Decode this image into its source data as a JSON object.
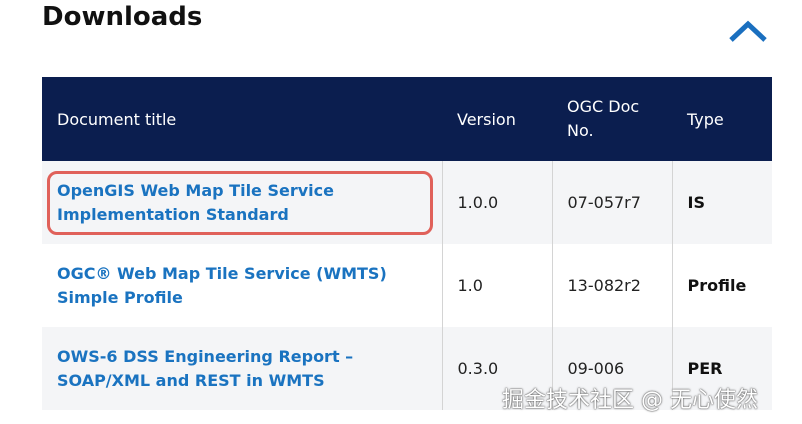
{
  "section": {
    "title": "Downloads",
    "collapse_icon": "chevron-up-icon"
  },
  "table": {
    "headers": [
      "Document title",
      "Version",
      "OGC Doc No.",
      "Type"
    ],
    "rows": [
      {
        "title": "OpenGIS Web Map Tile Service Implementation Standard",
        "version": "1.0.0",
        "doc_no": "07-057r7",
        "type": "IS"
      },
      {
        "title": "OGC® Web Map Tile Service (WMTS) Simple Profile",
        "version": "1.0",
        "doc_no": "13-082r2",
        "type": "Profile"
      },
      {
        "title": "OWS-6 DSS Engineering Report – SOAP/XML and REST in WMTS",
        "version": "0.3.0",
        "doc_no": "09-006",
        "type": "PER"
      }
    ]
  },
  "watermark": "掘金技术社区 @ 无心使然",
  "colors": {
    "header_bg": "#0b1e4f",
    "link": "#1a73c0",
    "highlight": "#e0615a"
  }
}
